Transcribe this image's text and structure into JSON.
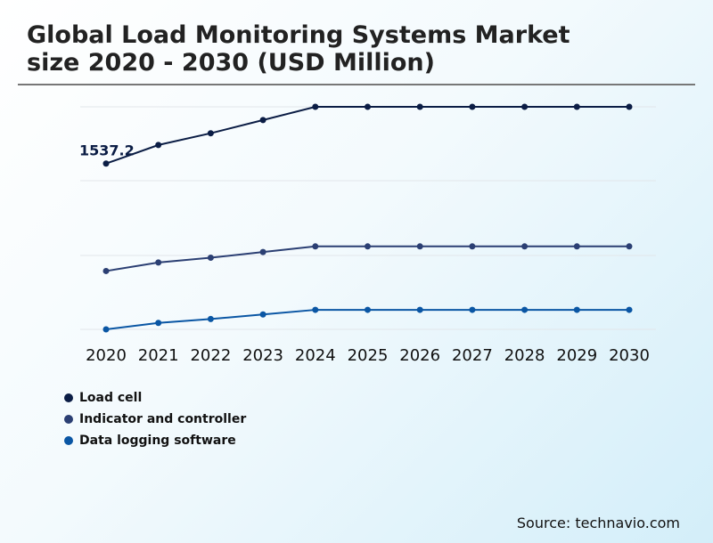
{
  "title_line1": "Global Load Monitoring Systems Market",
  "title_line2": "size 2020 - 2030 (USD Million)",
  "source": "Source: technavio.com",
  "chart_data": {
    "type": "line",
    "title": "Global Load Monitoring Systems Market size 2020 - 2030 (USD Million)",
    "categories": [
      "2020",
      "2021",
      "2022",
      "2023",
      "2024",
      "2025",
      "2026",
      "2027",
      "2028",
      "2029",
      "2030"
    ],
    "ylim": [
      0,
      2063
    ],
    "grid": true,
    "legend_position": "bottom-left",
    "series": [
      {
        "name": "Load cell",
        "color": "#0b1d45",
        "values": [
          1537.2,
          1709,
          1818,
          1940,
          2063,
          2063,
          2063,
          2063,
          2063,
          2063,
          2063
        ]
      },
      {
        "name": "Indicator and controller",
        "color": "#2b3f73",
        "values": [
          541,
          620,
          664,
          717,
          769,
          769,
          769,
          769,
          769,
          769,
          769
        ]
      },
      {
        "name": "Data logging software",
        "color": "#0a56a4",
        "values": [
          0,
          60,
          96,
          138,
          181,
          181,
          181,
          181,
          181,
          181,
          181
        ]
      }
    ],
    "data_labels": [
      {
        "series": "Load cell",
        "category": "2020",
        "text": "1537.2"
      }
    ]
  }
}
